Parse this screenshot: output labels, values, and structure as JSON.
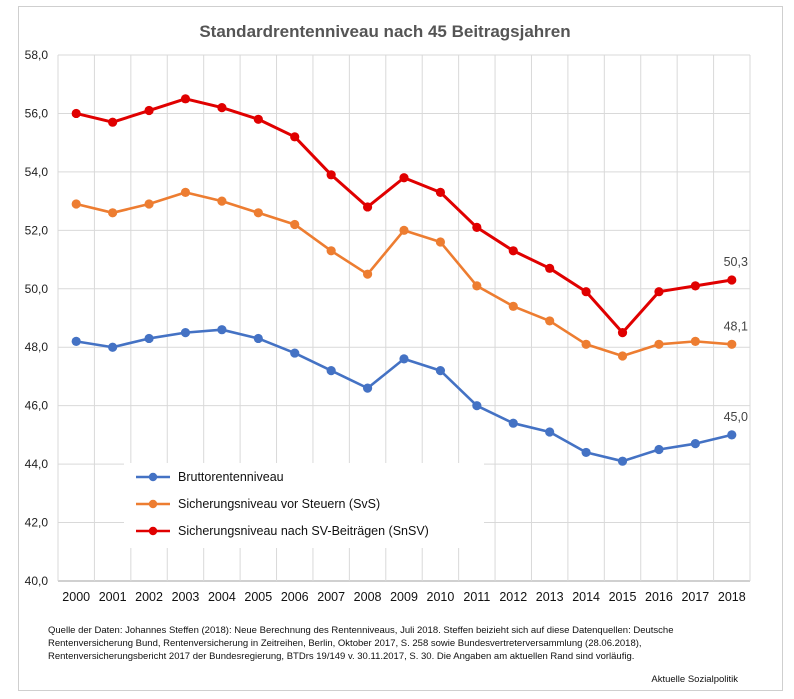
{
  "chart_data": {
    "type": "line",
    "title": "Standardrentenniveau nach 45 Beitragsjahren",
    "xlabel": "",
    "ylabel": "",
    "ylim": [
      40,
      58
    ],
    "y_ticks": [
      "40,0",
      "42,0",
      "44,0",
      "46,0",
      "48,0",
      "50,0",
      "52,0",
      "54,0",
      "56,0",
      "58,0"
    ],
    "y_tick_values": [
      40,
      42,
      44,
      46,
      48,
      50,
      52,
      54,
      56,
      58
    ],
    "categories": [
      "2000",
      "2001",
      "2002",
      "2003",
      "2004",
      "2005",
      "2006",
      "2007",
      "2008",
      "2009",
      "2010",
      "2011",
      "2012",
      "2013",
      "2014",
      "2015",
      "2016",
      "2017",
      "2018"
    ],
    "grid": true,
    "legend_position": "bottom-left",
    "series": [
      {
        "name": "Bruttorentenniveau",
        "color": "#4472c4",
        "values": [
          48.2,
          48.0,
          48.3,
          48.5,
          48.6,
          48.3,
          47.8,
          47.2,
          46.6,
          47.6,
          47.2,
          46.0,
          45.4,
          45.1,
          44.4,
          44.1,
          44.5,
          44.7,
          45.0
        ],
        "end_label": "45,0"
      },
      {
        "name": "Sicherungsniveau vor Steuern (SvS)",
        "color": "#ed7d31",
        "values": [
          52.9,
          52.6,
          52.9,
          53.3,
          53.0,
          52.6,
          52.2,
          51.3,
          50.5,
          52.0,
          51.6,
          50.1,
          49.4,
          48.9,
          48.1,
          47.7,
          48.1,
          48.2,
          48.1
        ],
        "end_label": "48,1"
      },
      {
        "name": "Sicherungsniveau nach SV-Beiträgen (SnSV)",
        "color": "#e00000",
        "values": [
          56.0,
          55.7,
          56.1,
          56.5,
          56.2,
          55.8,
          55.2,
          53.9,
          52.8,
          53.8,
          53.3,
          52.1,
          51.3,
          50.7,
          49.9,
          48.5,
          49.9,
          50.1,
          50.3
        ],
        "end_label": "50,3"
      }
    ]
  },
  "source_note": "Quelle der Daten: Johannes Steffen (2018): Neue Berechnung des Rentenniveaus, Juli 2018. Steffen beizieht sich auf diese Datenquellen: Deutsche Rentenversicherung Bund, Rentenversicherung in Zeitreihen, Berlin, Oktober 2017, S. 258 sowie Bundesvertreterversammlung (28.06.2018), Rentenversicherungsbericht 2017 der Bundesregierung, BTDrs 19/149 v. 30.11.2017, S. 30. Die Angaben am aktuellen Rand sind vorläufig.",
  "footer_credit": "Aktuelle Sozialpolitik"
}
